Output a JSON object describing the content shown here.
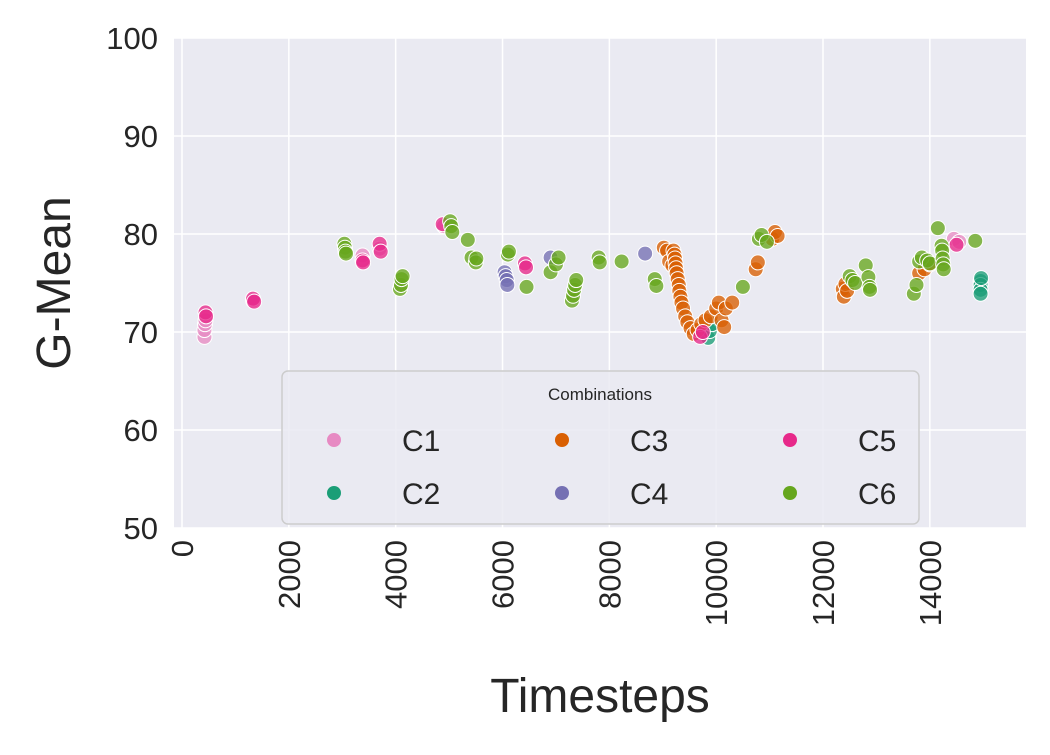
{
  "chart_data": {
    "type": "scatter",
    "xlabel": "Timesteps",
    "ylabel": "G-Mean",
    "xlim": [
      -150,
      15800
    ],
    "ylim": [
      50,
      100
    ],
    "x_ticks": [
      0,
      2000,
      4000,
      6000,
      8000,
      10000,
      12000,
      14000
    ],
    "y_ticks": [
      50,
      60,
      70,
      80,
      90,
      100
    ],
    "x_tick_labels": [
      "0",
      "2000",
      "4000",
      "6000",
      "8000",
      "10000",
      "12000",
      "14000"
    ],
    "y_tick_labels": [
      "50",
      "60",
      "70",
      "80",
      "90",
      "100"
    ],
    "grid": true,
    "legend": {
      "title": "Combinations",
      "placement": "lower-center",
      "columns": 3
    },
    "colors": {
      "C1": "#e78ac3",
      "C2": "#1b9e77",
      "C3": "#d95f02",
      "C4": "#7570b3",
      "C5": "#e7298a",
      "C6": "#66a61e",
      "background": "#eaeaf2",
      "grid": "#ffffff"
    },
    "series": [
      {
        "name": "C1",
        "points": [
          [
            420,
            69.5
          ],
          [
            420,
            70.2
          ],
          [
            430,
            70.8
          ],
          [
            440,
            71.2
          ],
          [
            3380,
            77.8
          ],
          [
            3700,
            78.5
          ],
          [
            4900,
            80.8
          ],
          [
            14450,
            79.5
          ],
          [
            14550,
            79.2
          ],
          [
            1330,
            73.2
          ]
        ]
      },
      {
        "name": "C2",
        "points": [
          [
            14950,
            75.2
          ],
          [
            14950,
            74.8
          ],
          [
            14950,
            74.3
          ],
          [
            14950,
            73.9
          ],
          [
            14960,
            75.5
          ],
          [
            9850,
            69.4
          ],
          [
            9880,
            70.1
          ],
          [
            9920,
            70.8
          ]
        ]
      },
      {
        "name": "C3",
        "points": [
          [
            9020,
            78.6
          ],
          [
            9080,
            78.3
          ],
          [
            9120,
            77.2
          ],
          [
            9180,
            76.8
          ],
          [
            9200,
            78.3
          ],
          [
            9220,
            77.9
          ],
          [
            9230,
            77.5
          ],
          [
            9240,
            77.0
          ],
          [
            9250,
            76.5
          ],
          [
            9260,
            76.0
          ],
          [
            9280,
            75.4
          ],
          [
            9300,
            74.8
          ],
          [
            9310,
            74.2
          ],
          [
            9330,
            73.6
          ],
          [
            9350,
            73.0
          ],
          [
            9380,
            72.4
          ],
          [
            9420,
            71.6
          ],
          [
            9460,
            71.0
          ],
          [
            9520,
            70.4
          ],
          [
            9580,
            69.8
          ],
          [
            9650,
            70.2
          ],
          [
            9720,
            70.8
          ],
          [
            9800,
            71.2
          ],
          [
            9900,
            71.6
          ],
          [
            10000,
            72.4
          ],
          [
            10050,
            73.0
          ],
          [
            10100,
            71.2
          ],
          [
            10150,
            70.5
          ],
          [
            10180,
            72.4
          ],
          [
            10300,
            73.0
          ],
          [
            10740,
            76.4
          ],
          [
            10780,
            77.1
          ],
          [
            11050,
            79.5
          ],
          [
            11100,
            80.2
          ],
          [
            11150,
            79.8
          ],
          [
            12370,
            74.4
          ],
          [
            12390,
            73.6
          ],
          [
            12420,
            74.9
          ],
          [
            12450,
            74.2
          ],
          [
            13800,
            76.0
          ],
          [
            13900,
            76.4
          ],
          [
            14000,
            76.9
          ]
        ]
      },
      {
        "name": "C4",
        "points": [
          [
            6040,
            76.1
          ],
          [
            6060,
            75.7
          ],
          [
            6080,
            75.3
          ],
          [
            6090,
            74.8
          ],
          [
            6900,
            77.6
          ],
          [
            8670,
            78.0
          ]
        ]
      },
      {
        "name": "C5",
        "points": [
          [
            440,
            72.0
          ],
          [
            450,
            71.6
          ],
          [
            1330,
            73.4
          ],
          [
            1350,
            73.1
          ],
          [
            3380,
            77.3
          ],
          [
            3390,
            77.1
          ],
          [
            3700,
            79.0
          ],
          [
            3720,
            78.2
          ],
          [
            4880,
            81.0
          ],
          [
            6420,
            77.0
          ],
          [
            6440,
            76.6
          ],
          [
            9700,
            69.5
          ],
          [
            9750,
            70.0
          ],
          [
            14500,
            78.9
          ]
        ]
      },
      {
        "name": "C6",
        "points": [
          [
            3040,
            79.0
          ],
          [
            3050,
            78.6
          ],
          [
            3060,
            78.2
          ],
          [
            3070,
            78.0
          ],
          [
            4080,
            74.4
          ],
          [
            4100,
            74.8
          ],
          [
            4110,
            75.4
          ],
          [
            4130,
            75.7
          ],
          [
            5020,
            81.3
          ],
          [
            5040,
            80.8
          ],
          [
            5060,
            80.2
          ],
          [
            5350,
            79.4
          ],
          [
            5420,
            77.6
          ],
          [
            5500,
            77.1
          ],
          [
            5510,
            77.5
          ],
          [
            6100,
            77.9
          ],
          [
            6120,
            78.2
          ],
          [
            6450,
            74.6
          ],
          [
            6900,
            76.1
          ],
          [
            7000,
            76.9
          ],
          [
            7050,
            77.6
          ],
          [
            7300,
            73.2
          ],
          [
            7320,
            73.7
          ],
          [
            7340,
            74.3
          ],
          [
            7360,
            74.8
          ],
          [
            7380,
            75.3
          ],
          [
            7800,
            77.6
          ],
          [
            7820,
            77.1
          ],
          [
            8230,
            77.2
          ],
          [
            8850,
            75.4
          ],
          [
            8880,
            74.7
          ],
          [
            10500,
            74.6
          ],
          [
            10800,
            79.5
          ],
          [
            10850,
            79.9
          ],
          [
            10950,
            79.2
          ],
          [
            12500,
            75.7
          ],
          [
            12550,
            75.3
          ],
          [
            12600,
            75.0
          ],
          [
            12800,
            76.8
          ],
          [
            12850,
            75.6
          ],
          [
            12870,
            74.6
          ],
          [
            12880,
            74.3
          ],
          [
            13700,
            73.9
          ],
          [
            13750,
            74.8
          ],
          [
            13800,
            77.2
          ],
          [
            13850,
            77.6
          ],
          [
            13950,
            77.3
          ],
          [
            14000,
            77.0
          ],
          [
            14150,
            80.6
          ],
          [
            14220,
            78.8
          ],
          [
            14230,
            78.3
          ],
          [
            14240,
            77.5
          ],
          [
            14250,
            76.9
          ],
          [
            14260,
            76.4
          ],
          [
            14850,
            79.3
          ]
        ]
      }
    ]
  }
}
